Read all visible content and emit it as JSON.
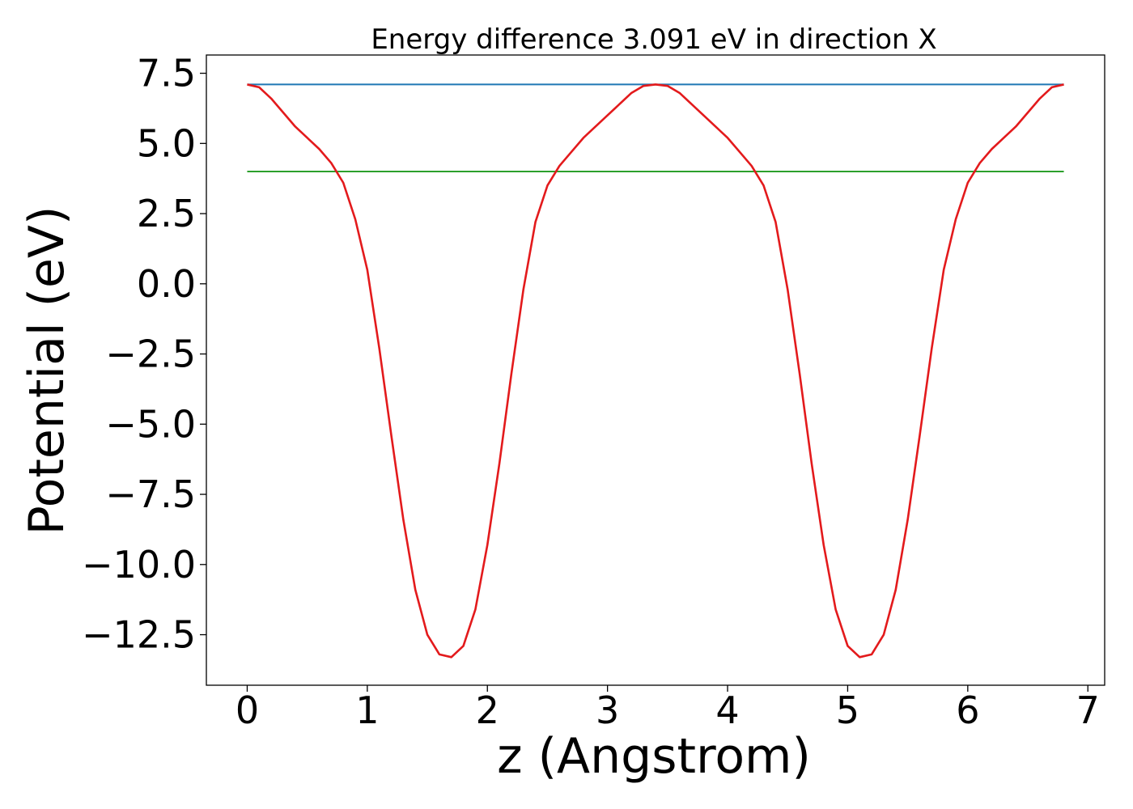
{
  "chart_data": {
    "type": "line",
    "title": "Energy difference 3.091 eV in direction X",
    "xlabel": "z (Angstrom)",
    "ylabel": "Potential (eV)",
    "xlim": [
      -0.34,
      7.14
    ],
    "ylim": [
      -14.3,
      8.15
    ],
    "xticks": [
      0,
      1,
      2,
      3,
      4,
      5,
      6,
      7
    ],
    "xtick_labels": [
      "0",
      "1",
      "2",
      "3",
      "4",
      "5",
      "6",
      "7"
    ],
    "yticks": [
      7.5,
      5.0,
      2.5,
      0.0,
      -2.5,
      -5.0,
      -7.5,
      -10.0,
      -12.5
    ],
    "ytick_labels": [
      "7.5",
      "5.0",
      "2.5",
      "0.0",
      "−2.5",
      "−5.0",
      "−7.5",
      "−10.0",
      "−12.5"
    ],
    "grid": false,
    "series": [
      {
        "color": "#1f77b4",
        "x": [
          0,
          6.8
        ],
        "y": [
          7.1,
          7.1
        ]
      },
      {
        "color": "#2ca02c",
        "x": [
          0,
          6.8
        ],
        "y": [
          4.0,
          4.0
        ]
      },
      {
        "color": "#e31a1c",
        "x": [
          0.0,
          0.1,
          0.2,
          0.3,
          0.4,
          0.5,
          0.6,
          0.7,
          0.8,
          0.9,
          1.0,
          1.1,
          1.2,
          1.3,
          1.4,
          1.5,
          1.6,
          1.7,
          1.8,
          1.9,
          2.0,
          2.1,
          2.2,
          2.3,
          2.4,
          2.5,
          2.6,
          2.7,
          2.8,
          2.9,
          3.0,
          3.1,
          3.2,
          3.3,
          3.4,
          3.5,
          3.6,
          3.7,
          3.8,
          3.9,
          4.0,
          4.1,
          4.2,
          4.3,
          4.4,
          4.5,
          4.6,
          4.7,
          4.8,
          4.9,
          5.0,
          5.1,
          5.2,
          5.3,
          5.4,
          5.5,
          5.6,
          5.7,
          5.8,
          5.9,
          6.0,
          6.1,
          6.2,
          6.3,
          6.4,
          6.5,
          6.6,
          6.7,
          6.8
        ],
        "y": [
          7.1,
          7.0,
          6.6,
          6.1,
          5.6,
          5.2,
          4.8,
          4.3,
          3.6,
          2.3,
          0.5,
          -2.3,
          -5.4,
          -8.4,
          -10.9,
          -12.5,
          -13.2,
          -13.3,
          -12.9,
          -11.6,
          -9.3,
          -6.4,
          -3.2,
          -0.2,
          2.2,
          3.5,
          4.2,
          4.7,
          5.2,
          5.6,
          6.0,
          6.4,
          6.8,
          7.05,
          7.1,
          7.05,
          6.8,
          6.4,
          6.0,
          5.6,
          5.2,
          4.7,
          4.2,
          3.5,
          2.2,
          -0.2,
          -3.2,
          -6.4,
          -9.3,
          -11.6,
          -12.9,
          -13.3,
          -13.2,
          -12.5,
          -10.9,
          -8.4,
          -5.4,
          -2.3,
          0.5,
          2.3,
          3.6,
          4.3,
          4.8,
          5.2,
          5.6,
          6.1,
          6.6,
          7.0,
          7.1
        ]
      }
    ]
  }
}
